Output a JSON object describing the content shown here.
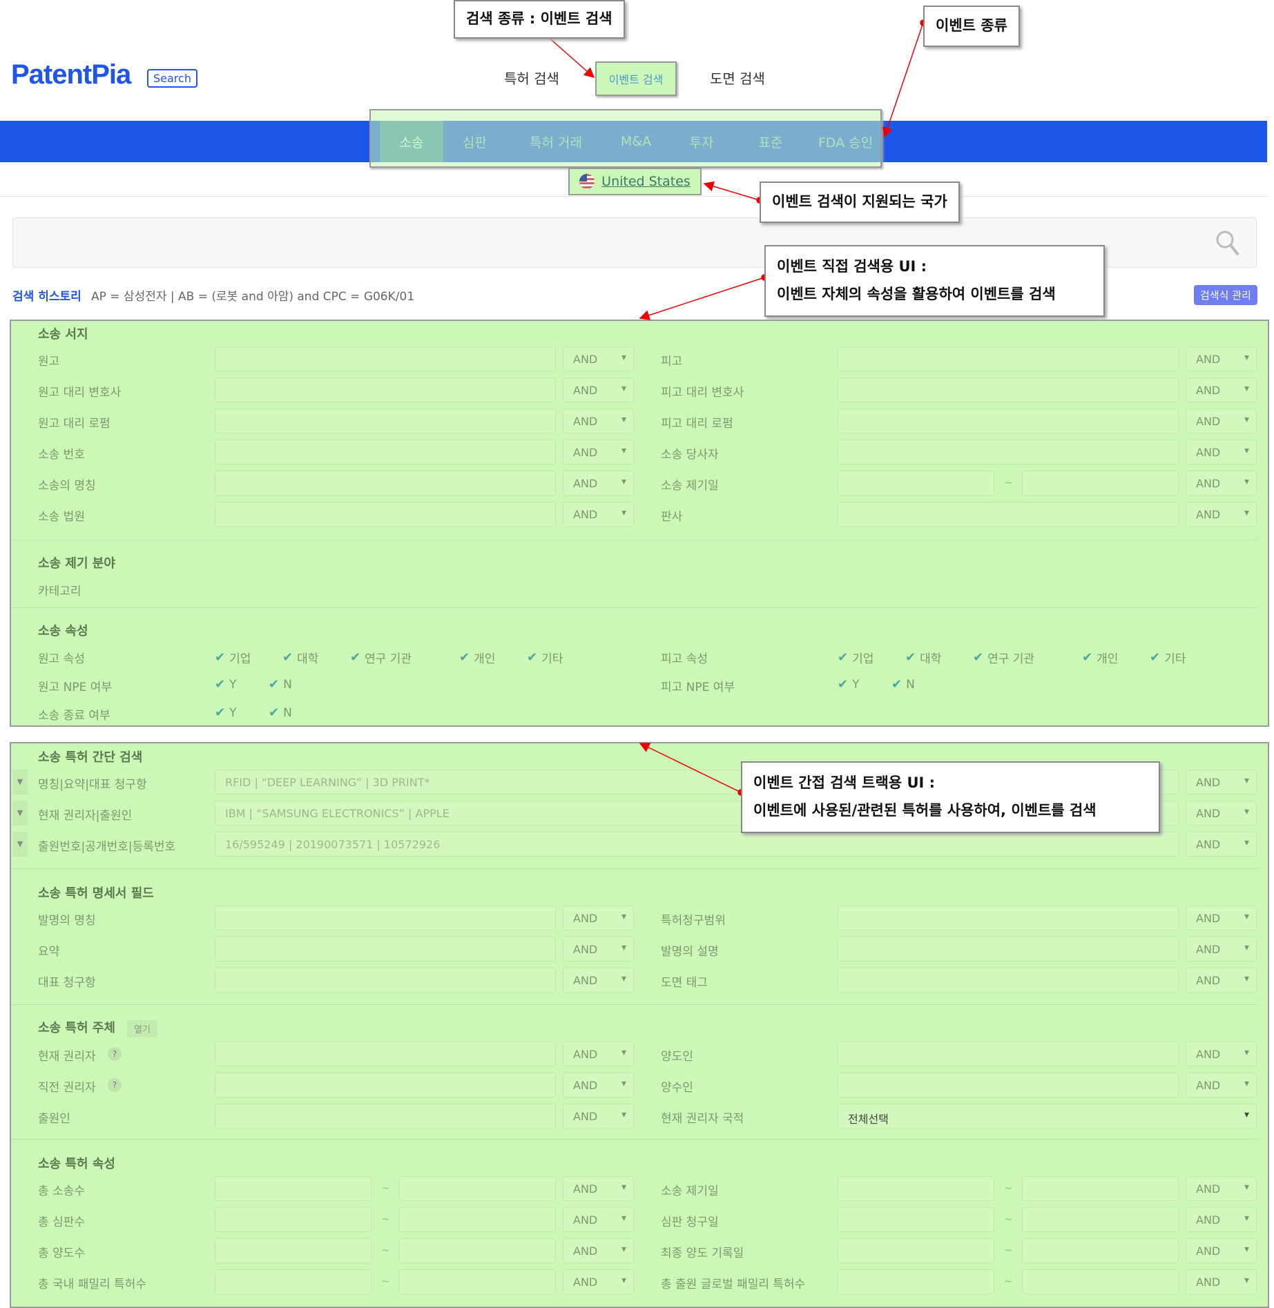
{
  "header": {
    "logo": "PatentPia",
    "logo_badge": "Search",
    "nav": [
      "특허 검색",
      "이벤트 검색",
      "도면 검색"
    ]
  },
  "event_tabs": [
    "소송",
    "심판",
    "특허 거래",
    "M&A",
    "투자",
    "표준",
    "FDA 승인"
  ],
  "country": "United States",
  "history": {
    "label": "검색 히스토리",
    "text": "AP = 삼성전자 |  AB = (로봇 and 아암) and CPC = G06K/01",
    "manage": "검색식 관리"
  },
  "op": "AND",
  "sections": {
    "bib": {
      "title": "소송 서지",
      "rows": [
        [
          "원고",
          "피고"
        ],
        [
          "원고 대리 변호사",
          "피고 대리 변호사"
        ],
        [
          "원고 대리 로펌",
          "피고 대리 로펌"
        ],
        [
          "소송 번호",
          "소송 당사자"
        ],
        [
          "소송의 명칭",
          "소송 제기일"
        ],
        [
          "소송 법원",
          "판사"
        ]
      ]
    },
    "field": {
      "title": "소송 제기 분야",
      "label": "카테고리"
    },
    "attr": {
      "title": "소송 속성",
      "plaintiff_attr": "원고 속성",
      "defendant_attr": "피고 속성",
      "types": [
        "기업",
        "대학",
        "연구 기관",
        "개인",
        "기타"
      ],
      "plaintiff_npe": "원고 NPE 여부",
      "defendant_npe": "피고 NPE 여부",
      "ended": "소송 종료 여부",
      "yn": [
        "Y",
        "N"
      ]
    },
    "quick": {
      "title": "소송 특허 간단 검색",
      "rows": [
        {
          "label": "명칭|요약|대표 청구항",
          "placeholder": "RFID | “DEEP LEARNING” | 3D PRINT*"
        },
        {
          "label": "현재 권리자|출원인",
          "placeholder": "IBM | “SAMSUNG ELECTRONICS” | APPLE"
        },
        {
          "label": "출원번호|공개번호|등록번호",
          "placeholder": "16/595249 | 20190073571 | 10572926"
        }
      ]
    },
    "spec": {
      "title": "소송 특허 명세서 필드",
      "rows": [
        [
          "발명의 명칭",
          "특허청구범위"
        ],
        [
          "요약",
          "발명의 설명"
        ],
        [
          "대표 청구항",
          "도면 태그"
        ]
      ]
    },
    "party": {
      "title": "소송 특허 주체",
      "open": "열기",
      "help": "?",
      "rows": [
        [
          "현재 권리자",
          "양도인"
        ],
        [
          "직전 권리자",
          "양수인"
        ],
        [
          "출원인",
          "현재 권리자 국적"
        ]
      ],
      "country_select": "전체선택"
    },
    "pattr": {
      "title": "소송 특허 속성",
      "tilde": "~",
      "rows": [
        [
          "총 소송수",
          "소송 제기일"
        ],
        [
          "총 심판수",
          "심판 청구일"
        ],
        [
          "총 양도수",
          "최종 양도 기록일"
        ],
        [
          "총 국내 패밀리 특허수",
          "총 출원 글로벌 패밀리 특허수"
        ]
      ]
    }
  },
  "callouts": {
    "search_type": "검색 종류 : 이벤트 검색",
    "event_type": "이벤트 종류",
    "country": "이벤트 검색이 지원되는 국가",
    "direct_1": "이벤트 직접 검색용 UI :",
    "direct_2": "이벤트 자체의 속성을 활용하여 이벤트를 검색",
    "indirect_1": "이벤트 간접 검색 트랙용 UI :",
    "indirect_2": "이벤트에 사용된/관련된 특허를 사용하여, 이벤트를 검색"
  },
  "colors": {
    "brand": "#1d55e8",
    "highlight": "#cdf7b7",
    "annotation": "#e00000"
  }
}
